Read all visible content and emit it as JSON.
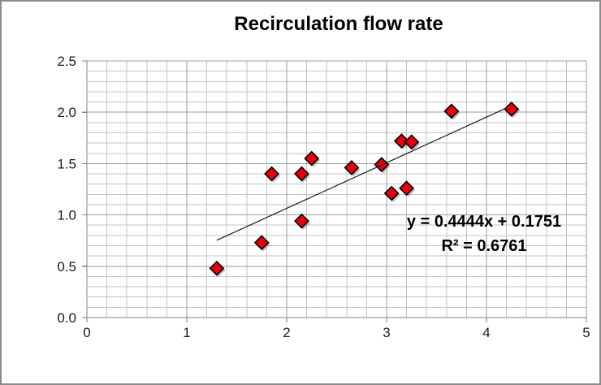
{
  "window": {
    "background": "#ffffff",
    "border_color": "#8c8c8c"
  },
  "chart_data": {
    "type": "scatter",
    "title": "Recirculation flow rate",
    "xlabel": "",
    "ylabel": "",
    "legend": "none",
    "grid": "major-and-minor",
    "points": [
      [
        1.3,
        0.48
      ],
      [
        1.75,
        0.73
      ],
      [
        1.85,
        1.4
      ],
      [
        2.15,
        0.94
      ],
      [
        2.15,
        1.4
      ],
      [
        2.25,
        1.55
      ],
      [
        2.65,
        1.46
      ],
      [
        2.95,
        1.49
      ],
      [
        3.05,
        1.21
      ],
      [
        3.15,
        1.72
      ],
      [
        3.2,
        1.26
      ],
      [
        3.25,
        1.71
      ],
      [
        3.65,
        2.01
      ],
      [
        4.25,
        2.03
      ]
    ],
    "trendline": {
      "type": "linear",
      "slope": 0.4444,
      "intercept": 0.1751,
      "x_start": 1.3,
      "x_end": 4.2,
      "equation": "y = 0.4444x + 0.1751",
      "r_squared": "R² = 0.6761"
    },
    "x_axis": {
      "min": 0,
      "max": 5,
      "major_step": 1,
      "minor_step": 0.2,
      "tick_labels": [
        "0",
        "1",
        "2",
        "3",
        "4",
        "5"
      ]
    },
    "y_axis": {
      "min": 0,
      "max": 2.5,
      "major_step": 0.5,
      "minor_step": 0.1,
      "tick_labels": [
        "0.0",
        "0.5",
        "1.0",
        "1.5",
        "2.0",
        "2.5"
      ]
    },
    "style": {
      "marker_fill": "#e8000d",
      "marker_stroke": "#000000",
      "marker_shadow": "#8a8a8a",
      "trendline_color": "#1a1a1a",
      "grid_minor_color": "#c3c3c3",
      "grid_major_color": "#9b9b9b",
      "axis_color": "#808080",
      "tick_text_color": "#1a1a1a"
    }
  }
}
